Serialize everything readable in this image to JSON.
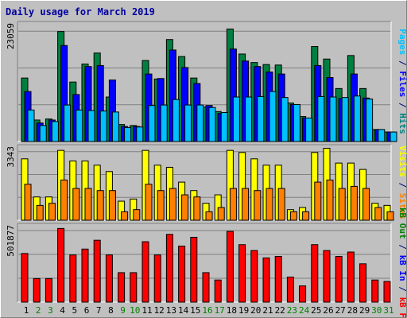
{
  "chart_data": {
    "type": "bar",
    "title": "Daily usage for March 2019",
    "categories": [
      "1",
      "2",
      "3",
      "4",
      "5",
      "6",
      "7",
      "8",
      "9",
      "10",
      "11",
      "12",
      "13",
      "14",
      "15",
      "16",
      "17",
      "18",
      "19",
      "20",
      "21",
      "22",
      "23",
      "24",
      "25",
      "26",
      "27",
      "28",
      "29",
      "30",
      "31"
    ],
    "weekend_days": [
      "2",
      "3",
      "9",
      "10",
      "16",
      "17",
      "23",
      "24",
      "30",
      "31"
    ],
    "panels": [
      {
        "id": "hits",
        "ymax_label": "23059",
        "ylim": [
          0,
          23059
        ],
        "right_labels": [
          {
            "text": "Pages",
            "color": "#00c0ff"
          },
          {
            "text": " / ",
            "color": "#000080"
          },
          {
            "text": "Files",
            "color": "#0000ff"
          },
          {
            "text": " / ",
            "color": "#000080"
          },
          {
            "text": "Hits",
            "color": "#008080"
          }
        ],
        "series": [
          {
            "name": "Hits",
            "color": "#008040",
            "values": [
              12700,
              4300,
              4500,
              22000,
              11900,
              15500,
              17700,
              8900,
              3400,
              3200,
              16200,
              12500,
              20400,
              17000,
              12700,
              6900,
              6000,
              22500,
              17500,
              15800,
              15400,
              15300,
              7700,
              5000,
              19000,
              16500,
              10600,
              17200,
              10600,
              2400,
              1900
            ]
          },
          {
            "name": "Files",
            "color": "#0000ff",
            "values": [
              10000,
              3700,
              4300,
              19200,
              9400,
              15000,
              15200,
              12300,
              3000,
              3000,
              13500,
              12600,
              18300,
              14800,
              11600,
              7200,
              5600,
              18500,
              16100,
              15000,
              13900,
              13500,
              7400,
              4700,
              15200,
              12800,
              8600,
              13500,
              8700,
              2400,
              1900
            ]
          },
          {
            "name": "Pages",
            "color": "#00c0ff",
            "values": [
              6300,
              3200,
              4000,
              7300,
              6300,
              6200,
              6100,
              5900,
              2800,
              2900,
              7200,
              7300,
              8400,
              7300,
              7300,
              6800,
              5800,
              8900,
              8900,
              9000,
              10000,
              8800,
              7400,
              4700,
              9000,
              8900,
              8800,
              9100,
              8500,
              2400,
              1900
            ]
          }
        ]
      },
      {
        "id": "sites",
        "ymax_label": "3343",
        "ylim": [
          0,
          3343
        ],
        "right_labels": [
          {
            "text": "Visits",
            "color": "#ffff00"
          },
          {
            "text": " / ",
            "color": "#000080"
          },
          {
            "text": "Sites",
            "color": "#ff8000"
          }
        ],
        "series": [
          {
            "name": "Visits",
            "color": "#ffff00",
            "values": [
              2900,
              1100,
              1100,
              3300,
              2800,
              2800,
              2600,
              2300,
              900,
              1000,
              3300,
              2600,
              2500,
              1800,
              1400,
              800,
              1200,
              3300,
              3200,
              2900,
              2600,
              2600,
              500,
              600,
              3200,
              3400,
              2700,
              2700,
              2400,
              800,
              700
            ]
          },
          {
            "name": "Sites",
            "color": "#ff8000",
            "values": [
              1700,
              700,
              800,
              1900,
              1500,
              1500,
              1400,
              1400,
              400,
              500,
              1700,
              1400,
              1500,
              1200,
              1100,
              400,
              600,
              1500,
              1500,
              1400,
              1500,
              1500,
              400,
              400,
              1800,
              1900,
              1500,
              1600,
              1500,
              600,
              400
            ]
          }
        ]
      },
      {
        "id": "kbytes",
        "ymax_label": "501877",
        "ylim": [
          0,
          501877
        ],
        "right_labels": [
          {
            "text": "kB Out",
            "color": "#008000"
          },
          {
            "text": " / ",
            "color": "#000080"
          },
          {
            "text": "kB In",
            "color": "#0000ff"
          },
          {
            "text": " / ",
            "color": "#000080"
          },
          {
            "text": "kB F",
            "color": "#ff0000"
          }
        ],
        "series": [
          {
            "name": "kB F",
            "color": "#ff0000",
            "values": [
              330000,
              160000,
              160000,
              500000,
              320000,
              360000,
              420000,
              320000,
              200000,
              200000,
              410000,
              320000,
              460000,
              380000,
              440000,
              200000,
              150000,
              480000,
              390000,
              350000,
              300000,
              310000,
              170000,
              110000,
              390000,
              350000,
              310000,
              340000,
              260000,
              150000,
              140000
            ]
          }
        ]
      }
    ]
  }
}
